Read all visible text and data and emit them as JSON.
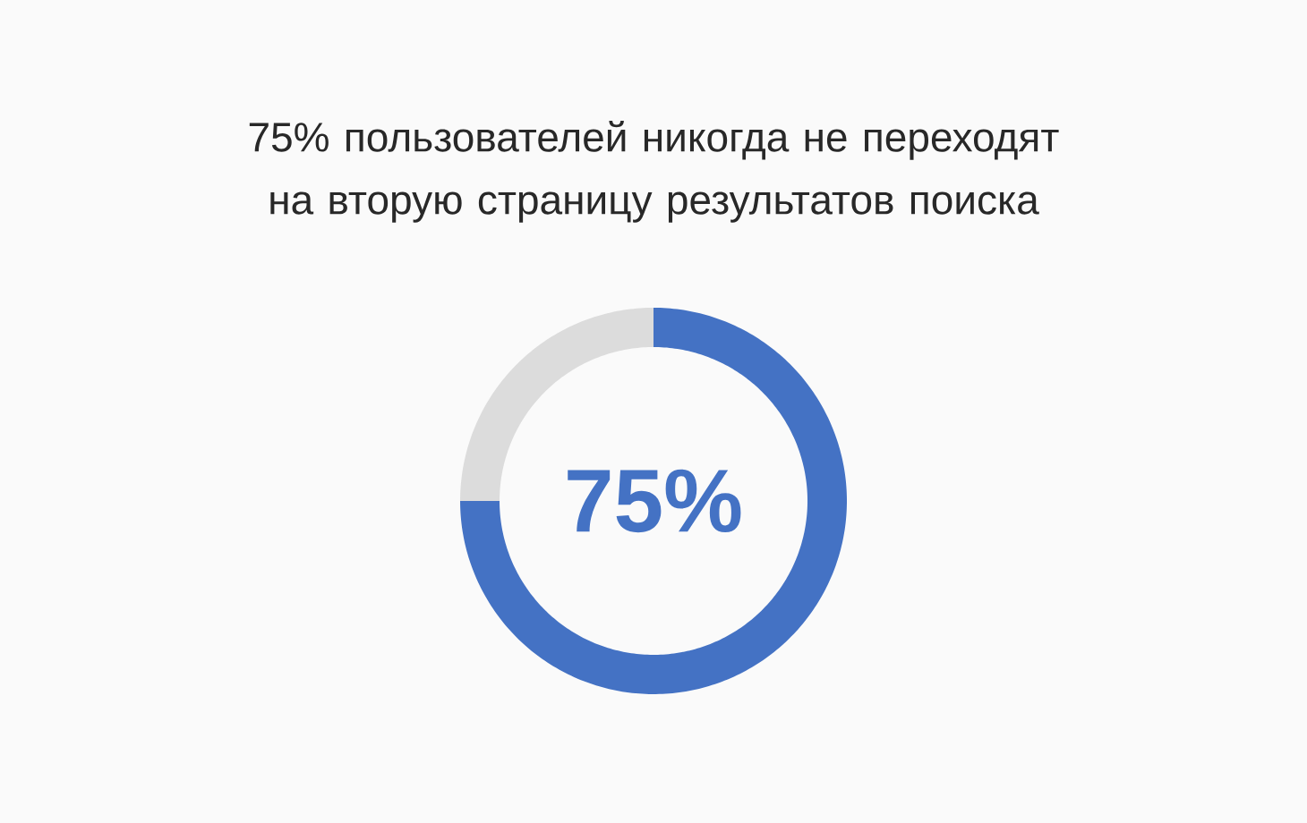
{
  "chart_data": {
    "type": "donut",
    "title": "75% пользователей никогда не переходят на вторую страницу результатов поиска",
    "categories": [
      null,
      null
    ],
    "values": [
      75,
      25
    ],
    "colors": [
      "#4472c4",
      "#dcdcdc"
    ],
    "value_labels": [
      "75%",
      null
    ]
  }
}
